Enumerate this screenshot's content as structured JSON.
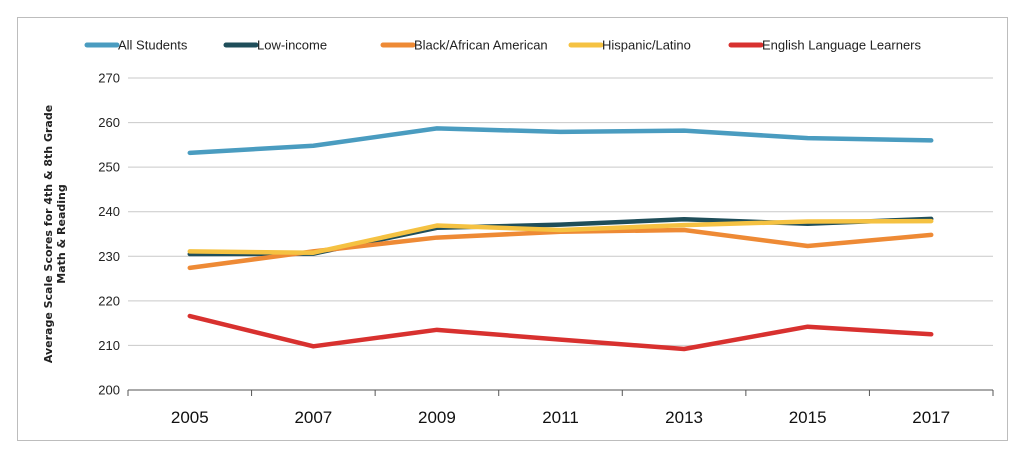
{
  "chart_data": {
    "type": "line",
    "title": "",
    "xlabel": "",
    "ylabel_lines": [
      "Average Scale Scores for 4th & 8th Grade",
      "Math & Reading"
    ],
    "categories": [
      "2005",
      "2007",
      "2009",
      "2011",
      "2013",
      "2015",
      "2017"
    ],
    "ylim": [
      200,
      270
    ],
    "yticks": [
      "200",
      "210",
      "220",
      "230",
      "240",
      "250",
      "260",
      "270"
    ],
    "grid": true,
    "legend_position": "top",
    "series": [
      {
        "name": "All Students",
        "color": "#4a9cc0",
        "values": [
          253.2,
          254.8,
          258.7,
          257.9,
          258.2,
          256.5,
          256.0
        ]
      },
      {
        "name": "Low-income",
        "color": "#1f4e5a",
        "values": [
          230.5,
          230.6,
          236.4,
          237.1,
          238.3,
          237.3,
          238.4
        ]
      },
      {
        "name": "Black/African American",
        "color": "#ee8a35",
        "values": [
          227.4,
          231.1,
          234.2,
          235.5,
          235.9,
          232.3,
          234.8
        ]
      },
      {
        "name": "Hispanic/Latino",
        "color": "#f5c242",
        "values": [
          231.1,
          230.8,
          236.9,
          235.9,
          237.0,
          237.8,
          237.9
        ]
      },
      {
        "name": "English Language Learners",
        "color": "#d8312f",
        "values": [
          216.6,
          209.8,
          213.5,
          211.3,
          209.2,
          214.2,
          212.5
        ]
      }
    ]
  }
}
